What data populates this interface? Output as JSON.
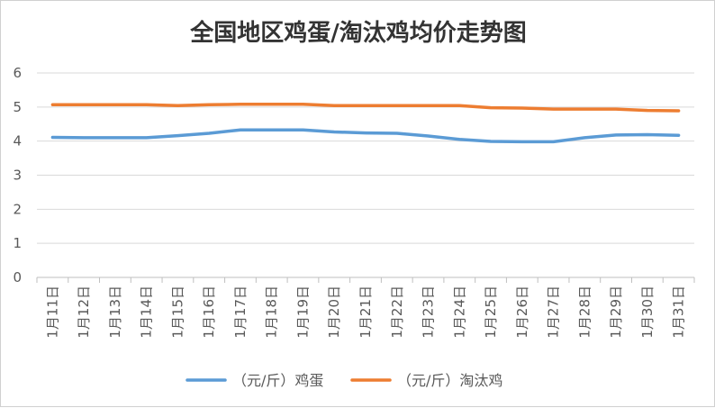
{
  "chart_data": {
    "type": "line",
    "title": "全国地区鸡蛋/淘汰鸡均价走势图",
    "xlabel": "",
    "ylabel": "",
    "categories": [
      "1月11日",
      "1月12日",
      "1月13日",
      "1月14日",
      "1月15日",
      "1月16日",
      "1月17日",
      "1月18日",
      "1月19日",
      "1月20日",
      "1月21日",
      "1月22日",
      "1月23日",
      "1月24日",
      "1月25日",
      "1月26日",
      "1月27日",
      "1月28日",
      "1月29日",
      "1月30日",
      "1月31日"
    ],
    "ylim": [
      0,
      6
    ],
    "yticks": [
      "0",
      "1",
      "2",
      "3",
      "4",
      "5",
      "6"
    ],
    "grid": true,
    "legend_position": "bottom",
    "series": [
      {
        "name": "（元/斤）鸡蛋",
        "color": "#5b9bd5",
        "values": [
          4.11,
          4.1,
          4.1,
          4.1,
          4.16,
          4.23,
          4.33,
          4.33,
          4.33,
          4.27,
          4.24,
          4.23,
          4.15,
          4.05,
          3.99,
          3.98,
          3.98,
          4.1,
          4.18,
          4.19,
          4.17
        ]
      },
      {
        "name": "（元/斤）淘汰鸡",
        "color": "#ed7d31",
        "values": [
          5.07,
          5.07,
          5.07,
          5.07,
          5.04,
          5.07,
          5.08,
          5.08,
          5.08,
          5.04,
          5.04,
          5.04,
          5.04,
          5.04,
          4.98,
          4.97,
          4.94,
          4.94,
          4.94,
          4.9,
          4.89
        ]
      }
    ]
  }
}
